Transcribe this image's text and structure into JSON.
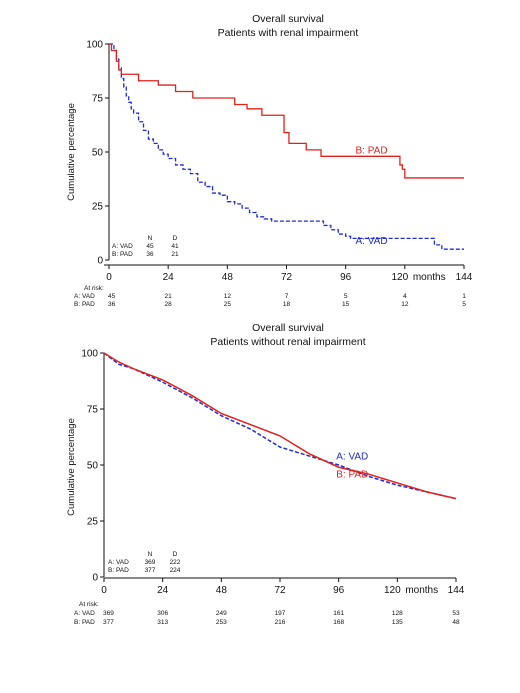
{
  "chart_data": [
    {
      "type": "line",
      "title": "Overall survival",
      "subtitle": "Patients with renal impairment",
      "xlabel": "months",
      "ylabel": "Cumulative percentage",
      "xlim": [
        0,
        144
      ],
      "ylim": [
        0,
        100
      ],
      "x_ticks": [
        "0",
        "24",
        "48",
        "72",
        "96",
        "120",
        "144"
      ],
      "y_ticks": [
        "0",
        "25",
        "50",
        "75",
        "100"
      ],
      "nd_table": {
        "header": [
          "N",
          "D"
        ],
        "rows": [
          {
            "label": "A: VAD",
            "n": "45",
            "d": "41"
          },
          {
            "label": "B: PAD",
            "n": "36",
            "d": "21"
          }
        ]
      },
      "at_risk": {
        "title": "At risk:",
        "rows": [
          {
            "label": "A: VAD",
            "values": [
              "45",
              "21",
              "12",
              "7",
              "5",
              "4",
              "1"
            ]
          },
          {
            "label": "B: PAD",
            "values": [
              "36",
              "28",
              "25",
              "18",
              "15",
              "12",
              "5"
            ]
          }
        ]
      },
      "series": [
        {
          "name": "A: VAD",
          "color": "#1f2bd6",
          "dash": true,
          "label_at": [
            100,
            9
          ],
          "points": [
            [
              0,
              100
            ],
            [
              2,
              97
            ],
            [
              3,
              93
            ],
            [
              4,
              89
            ],
            [
              5,
              84
            ],
            [
              6,
              80
            ],
            [
              7,
              76
            ],
            [
              8,
              73
            ],
            [
              9,
              70
            ],
            [
              10,
              68
            ],
            [
              12,
              64
            ],
            [
              14,
              60
            ],
            [
              16,
              56
            ],
            [
              18,
              54
            ],
            [
              20,
              51
            ],
            [
              22,
              49
            ],
            [
              24,
              47
            ],
            [
              27,
              44
            ],
            [
              30,
              42
            ],
            [
              33,
              40
            ],
            [
              36,
              36
            ],
            [
              39,
              34
            ],
            [
              42,
              31
            ],
            [
              45,
              30
            ],
            [
              48,
              27
            ],
            [
              51,
              26
            ],
            [
              54,
              24
            ],
            [
              57,
              22
            ],
            [
              60,
              20
            ],
            [
              63,
              19
            ],
            [
              66,
              18
            ],
            [
              69,
              18
            ],
            [
              72,
              18
            ],
            [
              84,
              18
            ],
            [
              87,
              16
            ],
            [
              90,
              14
            ],
            [
              93,
              12
            ],
            [
              96,
              11
            ],
            [
              98,
              10
            ],
            [
              130,
              10
            ],
            [
              132,
              7
            ],
            [
              135,
              5
            ],
            [
              144,
              5
            ]
          ]
        },
        {
          "name": "B: PAD",
          "color": "#e0211d",
          "dash": false,
          "label_at": [
            100,
            51
          ],
          "points": [
            [
              0,
              100
            ],
            [
              1,
              97
            ],
            [
              3,
              92
            ],
            [
              4,
              88
            ],
            [
              5,
              86
            ],
            [
              10,
              86
            ],
            [
              12,
              83
            ],
            [
              18,
              83
            ],
            [
              20,
              81
            ],
            [
              24,
              81
            ],
            [
              27,
              78
            ],
            [
              32,
              78
            ],
            [
              34,
              75
            ],
            [
              48,
              75
            ],
            [
              51,
              72
            ],
            [
              54,
              72
            ],
            [
              56,
              70
            ],
            [
              60,
              70
            ],
            [
              62,
              67
            ],
            [
              70,
              67
            ],
            [
              71,
              59
            ],
            [
              73,
              54
            ],
            [
              78,
              54
            ],
            [
              80,
              51
            ],
            [
              85,
              51
            ],
            [
              86,
              48
            ],
            [
              116,
              48
            ],
            [
              118,
              44
            ],
            [
              119,
              42
            ],
            [
              120,
              38
            ],
            [
              144,
              38
            ]
          ]
        }
      ]
    },
    {
      "type": "line",
      "title": "Overall survival",
      "subtitle": "Patients without renal impairment",
      "xlabel": "months",
      "ylabel": "Cumulative percentage",
      "xlim": [
        0,
        144
      ],
      "ylim": [
        0,
        100
      ],
      "x_ticks": [
        "0",
        "24",
        "48",
        "72",
        "96",
        "120",
        "144"
      ],
      "y_ticks": [
        "0",
        "25",
        "50",
        "75",
        "100"
      ],
      "nd_table": {
        "header": [
          "N",
          "D"
        ],
        "rows": [
          {
            "label": "A: VAD",
            "n": "369",
            "d": "222"
          },
          {
            "label": "B: PAD",
            "n": "377",
            "d": "224"
          }
        ]
      },
      "at_risk": {
        "title": "At risk:",
        "rows": [
          {
            "label": "A: VAD",
            "values": [
              "369",
              "306",
              "249",
              "197",
              "161",
              "128",
              "53"
            ]
          },
          {
            "label": "B: PAD",
            "values": [
              "377",
              "313",
              "253",
              "216",
              "168",
              "135",
              "48"
            ]
          }
        ]
      },
      "series": [
        {
          "name": "A: VAD",
          "color": "#1f2bd6",
          "dash": true,
          "label_at": [
            95,
            54
          ],
          "points": [
            [
              0,
              100
            ],
            [
              6,
              95
            ],
            [
              12,
              93
            ],
            [
              24,
              87
            ],
            [
              36,
              80
            ],
            [
              48,
              72
            ],
            [
              60,
              66
            ],
            [
              66,
              62
            ],
            [
              72,
              58
            ],
            [
              84,
              54
            ],
            [
              96,
              50
            ],
            [
              108,
              45
            ],
            [
              120,
              41
            ],
            [
              132,
              38
            ],
            [
              144,
              35
            ]
          ]
        },
        {
          "name": "B: PAD",
          "color": "#e0211d",
          "dash": false,
          "label_at": [
            95,
            46
          ],
          "points": [
            [
              0,
              100
            ],
            [
              6,
              96
            ],
            [
              12,
              93
            ],
            [
              24,
              88
            ],
            [
              36,
              81
            ],
            [
              48,
              73
            ],
            [
              60,
              68
            ],
            [
              72,
              63
            ],
            [
              84,
              55
            ],
            [
              96,
              49
            ],
            [
              108,
              46
            ],
            [
              120,
              42
            ],
            [
              132,
              38
            ],
            [
              144,
              35
            ]
          ]
        }
      ]
    }
  ]
}
